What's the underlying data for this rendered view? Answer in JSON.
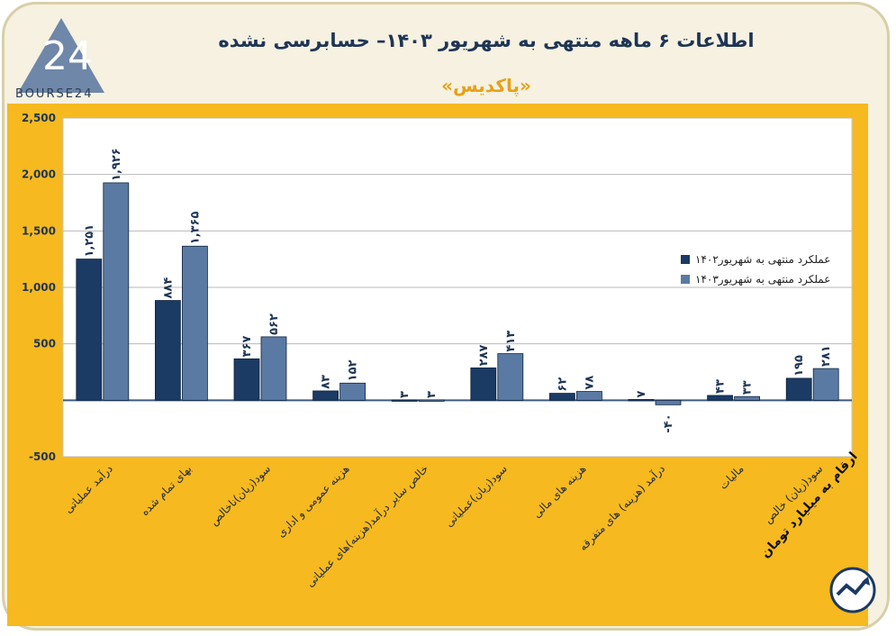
{
  "header": {
    "title": "اطلاعات ۶ ماهه منتهی به شهریور ۱۴۰۳– حسابرسی نشده",
    "subtitle": "«پاکدیس»",
    "logo_text": "BOURSE24"
  },
  "note": "ارقام به میلیارد تومان",
  "colors": {
    "series_1402": "#1b3a64",
    "series_1403": "#5b7aa3",
    "panel": "#f6b91f",
    "title": "#1e3556",
    "subtitle": "#e7a116"
  },
  "chart_data": {
    "type": "bar",
    "categories": [
      "درآمد عملیاتی",
      "بهای تمام شده",
      "سود(زیان)ناخالص",
      "هزینه عمومی و اداری",
      "خالص سایر درآمد(هزینه)های عملیاتی",
      "سود(زیان)عملیاتی",
      "هزینه های مالی",
      "درآمد (هزینه) های متفرقه",
      "مالیات",
      "سود(زیان) خالص"
    ],
    "series": [
      {
        "name": "عملکرد منتهی به شهریور۱۴۰۲",
        "values": [
          1251,
          884,
          367,
          83,
          3,
          287,
          62,
          7,
          43,
          195
        ],
        "labels": [
          "۱,۲۵۱",
          "۸۸۴",
          "۳۶۷",
          "۸۳",
          "۳",
          "۲۸۷",
          "۶۲",
          "۷",
          "۴۳",
          "۱۹۵"
        ]
      },
      {
        "name": "عملکرد منتهی به شهریور۱۴۰۳",
        "values": [
          1926,
          1365,
          562,
          152,
          3,
          413,
          78,
          -40,
          33,
          281
        ],
        "labels": [
          "۱,۹۲۶",
          "۱,۳۶۵",
          "۵۶۲",
          "۱۵۲",
          "۳",
          "۴۱۳",
          "۷۸",
          "-۴۰",
          "۳۳",
          "۲۸۱"
        ]
      }
    ],
    "yticks": [
      "2,500",
      "2,000",
      "1,500",
      "1,000",
      "500",
      "",
      "-500"
    ],
    "ylim": [
      -500,
      2500
    ],
    "grid": true,
    "legend": "top-right"
  }
}
